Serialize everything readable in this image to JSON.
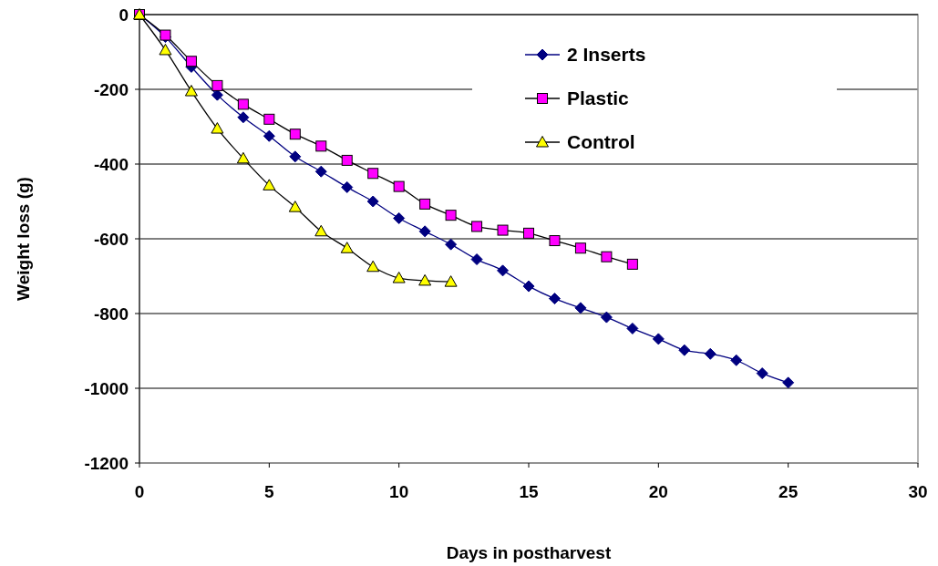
{
  "chart_data": {
    "type": "line",
    "xlabel": "Days in postharvest",
    "ylabel": "Weight loss (g)",
    "x": [
      0,
      1,
      2,
      3,
      4,
      5,
      6,
      7,
      8,
      9,
      10,
      11,
      12,
      13,
      14,
      15,
      16,
      17,
      18,
      19,
      20,
      21,
      22,
      23,
      24,
      25
    ],
    "series": [
      {
        "name": "2 Inserts",
        "color": "#000080",
        "marker": "diamond",
        "values": [
          0,
          -60,
          -140,
          -215,
          -275,
          -325,
          -380,
          -420,
          -462,
          -500,
          -545,
          -580,
          -615,
          -655,
          -685,
          -727,
          -760,
          -785,
          -810,
          -840,
          -868,
          -898,
          -908,
          -925,
          -960,
          -985
        ]
      },
      {
        "name": "Plastic",
        "color": "#ff00ff",
        "marker": "square",
        "x": [
          0,
          1,
          2,
          3,
          4,
          5,
          6,
          7,
          8,
          9,
          10,
          11,
          12,
          13,
          14,
          15,
          16,
          17,
          18,
          19
        ],
        "values": [
          0,
          -55,
          -125,
          -190,
          -240,
          -280,
          -320,
          -352,
          -390,
          -425,
          -460,
          -507,
          -537,
          -567,
          -577,
          -585,
          -605,
          -625,
          -648,
          -668
        ]
      },
      {
        "name": "Control",
        "color": "#ffff00",
        "marker": "triangle",
        "x": [
          0,
          1,
          2,
          3,
          4,
          5,
          6,
          7,
          8,
          9,
          10,
          11,
          12
        ],
        "values": [
          0,
          -95,
          -205,
          -305,
          -385,
          -457,
          -515,
          -580,
          -625,
          -675,
          -705,
          -712,
          -715
        ]
      }
    ],
    "xlim": [
      0,
      30
    ],
    "xticks": [
      0,
      5,
      10,
      15,
      20,
      25,
      30
    ],
    "ylim": [
      -1200,
      0
    ],
    "yticks": [
      -1200,
      -1000,
      -800,
      -600,
      -400,
      -200,
      0
    ],
    "grid": "y",
    "legend": "top right"
  }
}
